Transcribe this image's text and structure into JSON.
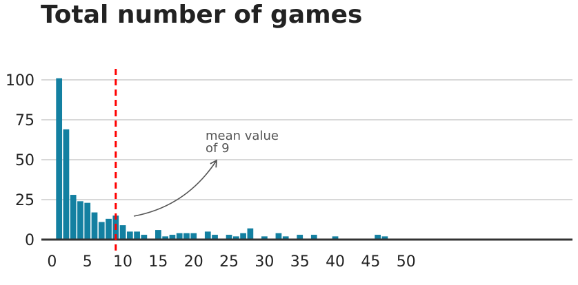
{
  "chart_data": {
    "type": "bar",
    "title": "Total number of games",
    "xlabel": "",
    "ylabel": "",
    "x": [
      1,
      2,
      3,
      4,
      5,
      6,
      7,
      8,
      9,
      10,
      11,
      12,
      13,
      14,
      15,
      16,
      17,
      18,
      19,
      20,
      21,
      22,
      23,
      24,
      25,
      26,
      27,
      28,
      29,
      30,
      31,
      32,
      33,
      34,
      35,
      36,
      37,
      38,
      39,
      40,
      41,
      42,
      43,
      44,
      45,
      46,
      47,
      48,
      49,
      50,
      51,
      52,
      53,
      54,
      55,
      56,
      57,
      58,
      59,
      60,
      61,
      62,
      63,
      64,
      65,
      66,
      67,
      68,
      69,
      70,
      71,
      72,
      73,
      74,
      75,
      76,
      77
    ],
    "values": [
      101,
      69,
      28,
      24,
      23,
      17,
      11,
      13,
      15,
      9,
      5,
      5,
      3,
      0,
      6,
      2,
      3,
      4,
      4,
      4,
      0,
      5,
      3,
      0,
      3,
      2,
      4,
      7,
      0,
      2,
      0,
      4,
      2,
      0,
      3,
      0,
      3,
      0,
      0,
      2,
      0,
      0,
      0,
      0,
      0,
      3,
      2,
      0,
      0,
      0,
      0,
      0,
      0,
      0,
      0,
      0,
      0,
      0,
      0,
      0,
      0,
      0,
      0,
      0,
      0,
      0,
      0,
      0,
      0,
      0,
      0,
      0,
      0,
      0,
      0,
      0,
      0
    ],
    "bar_color": "#1380a1",
    "xticks": [
      0,
      5,
      10,
      15,
      20,
      25,
      30,
      35,
      40,
      45,
      50
    ],
    "yticks": [
      0,
      25,
      50,
      75,
      100
    ],
    "xlim": [
      -1.5,
      73.5
    ],
    "ylim": [
      0,
      100
    ],
    "grid": "horizontal",
    "mean_line": {
      "value": 9,
      "color": "#ff0000",
      "style": "dashed"
    },
    "annotation": {
      "line1": "mean value",
      "line2": "of 9"
    }
  }
}
